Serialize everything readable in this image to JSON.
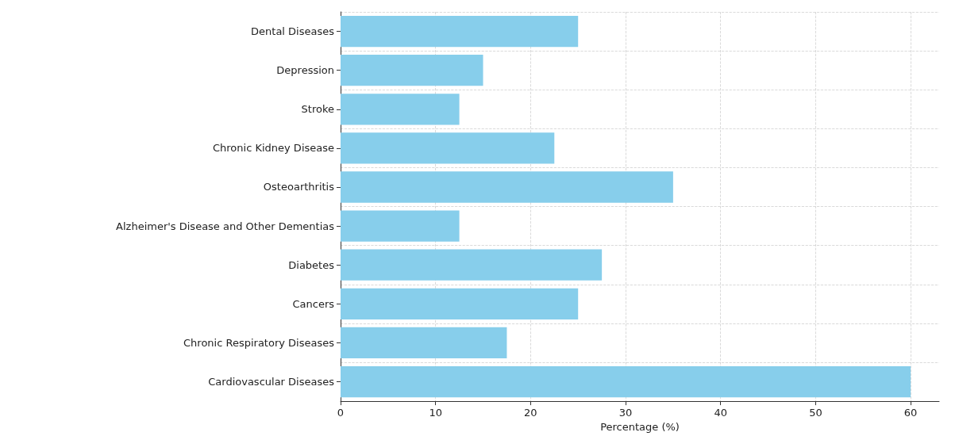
{
  "chart_data": {
    "type": "bar",
    "orientation": "horizontal",
    "categories": [
      "Dental Diseases",
      "Depression",
      "Stroke",
      "Chronic Kidney Disease",
      "Osteoarthritis",
      "Alzheimer's Disease and Other Dementias",
      "Diabetes",
      "Cancers",
      "Chronic Respiratory Diseases",
      "Cardiovascular Diseases"
    ],
    "values": [
      25,
      15,
      12.5,
      22.5,
      35,
      12.5,
      27.5,
      25,
      17.5,
      60
    ],
    "color": "#87ceeb",
    "xlabel": "Percentage (%)",
    "xlim": [
      0,
      63
    ],
    "xticks": [
      0,
      10,
      20,
      30,
      40,
      50,
      60
    ],
    "grid": true
  }
}
